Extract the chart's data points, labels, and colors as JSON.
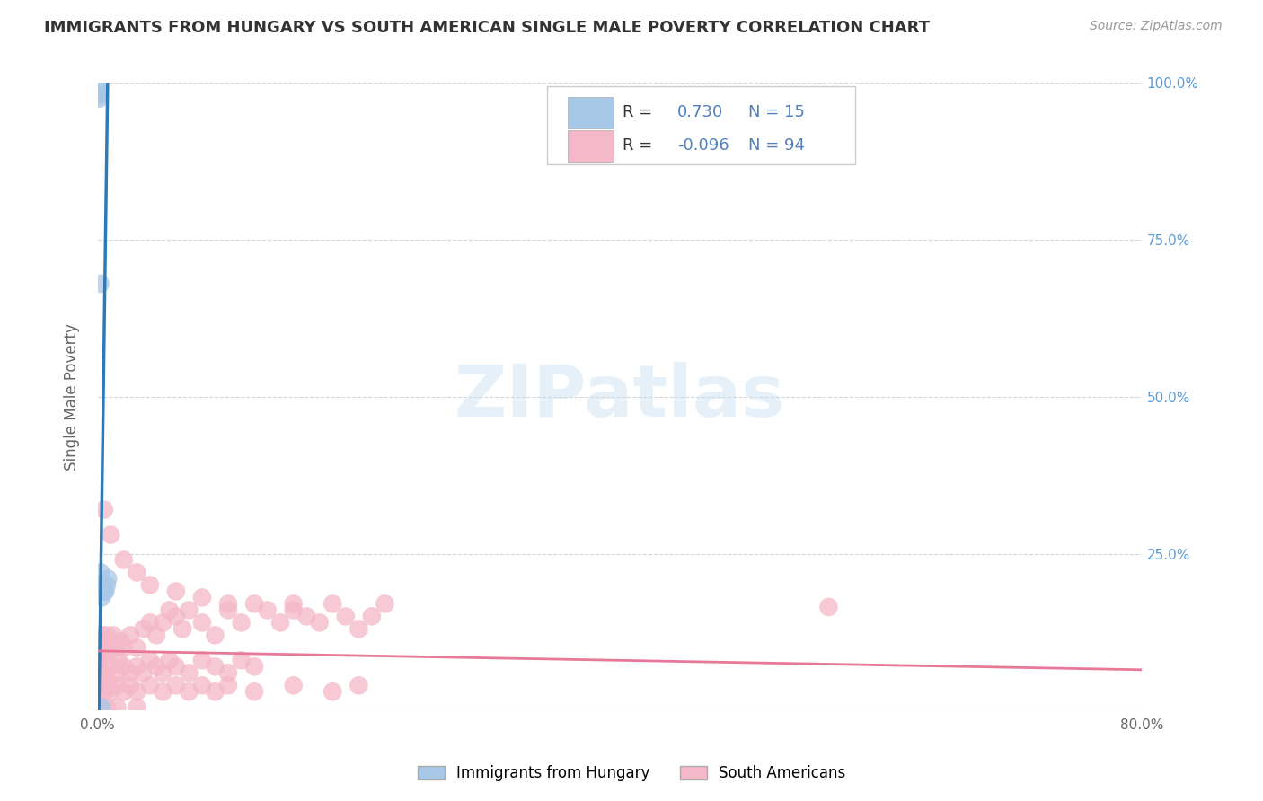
{
  "title": "IMMIGRANTS FROM HUNGARY VS SOUTH AMERICAN SINGLE MALE POVERTY CORRELATION CHART",
  "source": "Source: ZipAtlas.com",
  "ylabel": "Single Male Poverty",
  "watermark": "ZIPatlas",
  "blue_R": 0.73,
  "blue_N": 15,
  "pink_R": -0.096,
  "pink_N": 94,
  "blue_label": "Immigrants from Hungary",
  "pink_label": "South Americans",
  "xlim": [
    0.0,
    0.8
  ],
  "ylim": [
    0.0,
    1.0
  ],
  "blue_color": "#a8c8e8",
  "pink_color": "#f4b8c8",
  "blue_line_color": "#2b7bba",
  "pink_line_color": "#e87898",
  "legend_text_color": "#5080c0",
  "background_color": "#ffffff",
  "grid_color": "#cccccc",
  "title_color": "#333333",
  "right_axis_color": "#5b9bd5",
  "blue_scatter_x": [
    0.0008,
    0.0009,
    0.001,
    0.0011,
    0.0012,
    0.002,
    0.0025,
    0.003,
    0.003,
    0.004,
    0.005,
    0.006,
    0.007,
    0.008,
    0.003
  ],
  "blue_scatter_y": [
    1.0,
    0.99,
    0.985,
    0.98,
    0.975,
    0.68,
    0.22,
    0.2,
    0.18,
    0.2,
    0.19,
    0.19,
    0.2,
    0.21,
    0.005
  ],
  "pink_scatter_x": [
    0.001,
    0.002,
    0.003,
    0.004,
    0.005,
    0.006,
    0.007,
    0.008,
    0.009,
    0.01,
    0.012,
    0.014,
    0.016,
    0.018,
    0.02,
    0.025,
    0.03,
    0.035,
    0.04,
    0.045,
    0.05,
    0.055,
    0.06,
    0.065,
    0.07,
    0.08,
    0.09,
    0.1,
    0.11,
    0.12,
    0.13,
    0.14,
    0.15,
    0.16,
    0.17,
    0.18,
    0.19,
    0.2,
    0.21,
    0.22,
    0.003,
    0.005,
    0.007,
    0.01,
    0.015,
    0.02,
    0.025,
    0.03,
    0.035,
    0.04,
    0.045,
    0.05,
    0.055,
    0.06,
    0.07,
    0.08,
    0.09,
    0.1,
    0.11,
    0.12,
    0.002,
    0.004,
    0.006,
    0.008,
    0.01,
    0.015,
    0.02,
    0.025,
    0.03,
    0.04,
    0.05,
    0.06,
    0.07,
    0.08,
    0.09,
    0.1,
    0.12,
    0.15,
    0.18,
    0.2,
    0.005,
    0.01,
    0.02,
    0.03,
    0.04,
    0.06,
    0.08,
    0.1,
    0.15,
    0.56,
    0.003,
    0.007,
    0.015,
    0.03
  ],
  "pink_scatter_y": [
    0.08,
    0.1,
    0.12,
    0.09,
    0.11,
    0.1,
    0.12,
    0.09,
    0.11,
    0.1,
    0.12,
    0.1,
    0.08,
    0.11,
    0.1,
    0.12,
    0.1,
    0.13,
    0.14,
    0.12,
    0.14,
    0.16,
    0.15,
    0.13,
    0.16,
    0.14,
    0.12,
    0.16,
    0.14,
    0.17,
    0.16,
    0.14,
    0.17,
    0.15,
    0.14,
    0.17,
    0.15,
    0.13,
    0.15,
    0.17,
    0.05,
    0.06,
    0.05,
    0.07,
    0.06,
    0.07,
    0.06,
    0.07,
    0.06,
    0.08,
    0.07,
    0.06,
    0.08,
    0.07,
    0.06,
    0.08,
    0.07,
    0.06,
    0.08,
    0.07,
    0.03,
    0.04,
    0.03,
    0.04,
    0.03,
    0.04,
    0.03,
    0.04,
    0.03,
    0.04,
    0.03,
    0.04,
    0.03,
    0.04,
    0.03,
    0.04,
    0.03,
    0.04,
    0.03,
    0.04,
    0.32,
    0.28,
    0.24,
    0.22,
    0.2,
    0.19,
    0.18,
    0.17,
    0.16,
    0.165,
    0.005,
    0.005,
    0.005,
    0.005
  ]
}
